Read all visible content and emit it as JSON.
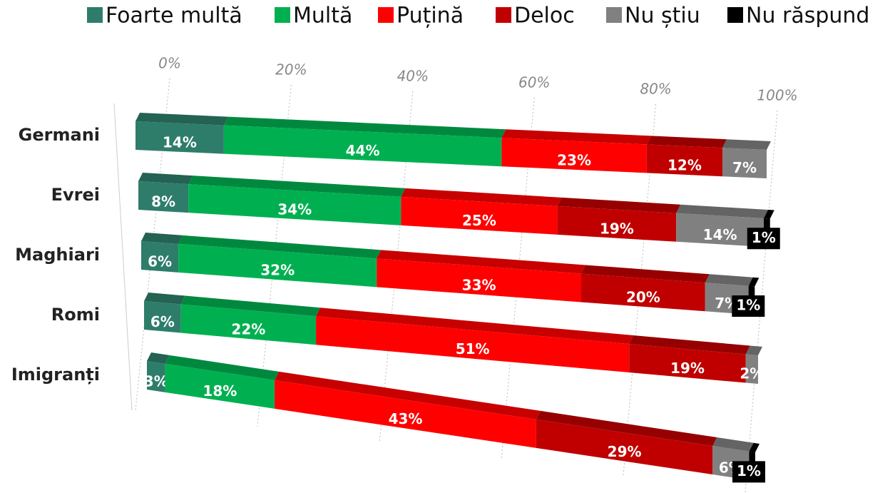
{
  "chart_data": {
    "type": "bar",
    "orientation": "horizontal",
    "stacked": true,
    "categories": [
      "Germani",
      "Evrei",
      "Maghiari",
      "Romi",
      "Imigranți"
    ],
    "series": [
      {
        "name": "Foarte multă",
        "color": "#2e7d6b",
        "values": [
          14,
          8,
          6,
          6,
          3
        ],
        "value_labels": [
          "14%",
          "8%",
          "6%",
          "6%",
          "3%"
        ]
      },
      {
        "name": "Multă",
        "color": "#00b050",
        "values": [
          44,
          34,
          32,
          22,
          18
        ],
        "value_labels": [
          "44%",
          "34%",
          "32%",
          "22%",
          "18%"
        ]
      },
      {
        "name": "Puțină",
        "color": "#ff0000",
        "values": [
          23,
          25,
          33,
          51,
          43
        ],
        "value_labels": [
          "23%",
          "25%",
          "33%",
          "51%",
          "43%"
        ]
      },
      {
        "name": "Deloc",
        "color": "#c00000",
        "values": [
          12,
          19,
          20,
          19,
          29
        ],
        "value_labels": [
          "12%",
          "19%",
          "20%",
          "19%",
          "29%"
        ]
      },
      {
        "name": "Nu știu",
        "color": "#808080",
        "values": [
          7,
          14,
          7,
          2,
          6
        ],
        "value_labels": [
          "7%",
          "14%",
          "7%",
          "2%",
          "6%"
        ]
      },
      {
        "name": "Nu răspund",
        "color": "#000000",
        "values": [
          null,
          1,
          1,
          null,
          1
        ],
        "value_labels": [
          null,
          "1%",
          "1%",
          null,
          "1%"
        ]
      }
    ],
    "xlim": [
      0,
      100
    ],
    "xticks": [
      {
        "value": 0,
        "label": "0%"
      },
      {
        "value": 20,
        "label": "20%"
      },
      {
        "value": 40,
        "label": "40%"
      },
      {
        "value": 60,
        "label": "60%"
      },
      {
        "value": 80,
        "label": "80%"
      },
      {
        "value": 100,
        "label": "100%"
      }
    ],
    "grid": true,
    "legend": "top"
  }
}
